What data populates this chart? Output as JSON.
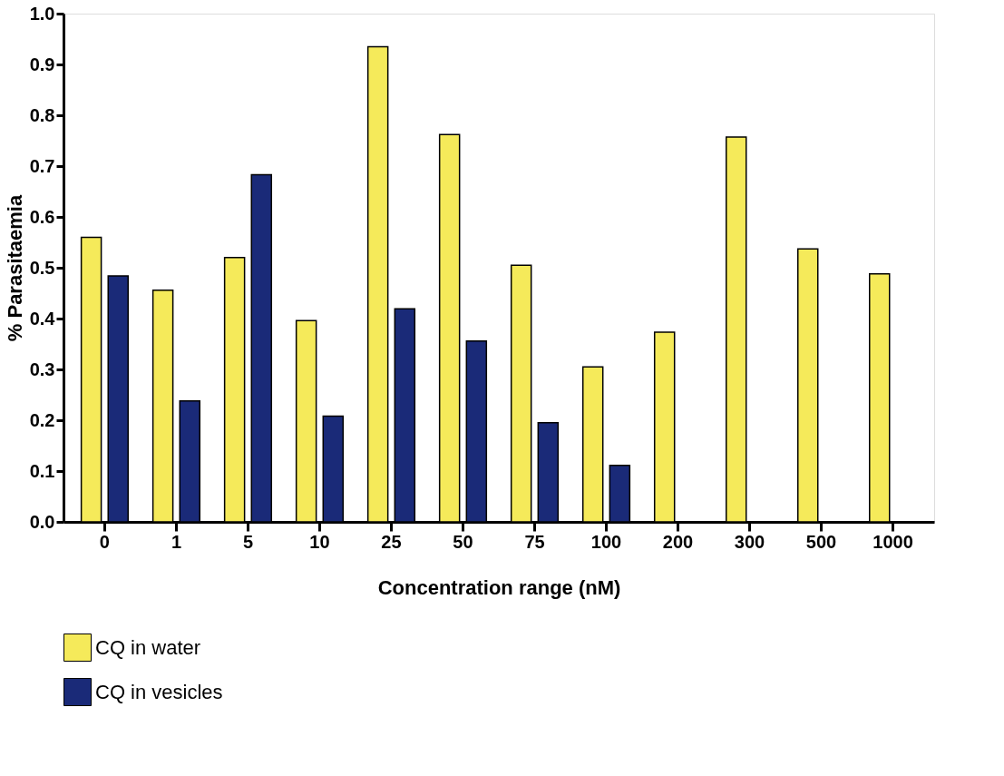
{
  "chart_data": {
    "type": "bar",
    "xlabel": "Concentration range (nM)",
    "ylabel": "% Parasitaemia",
    "categories": [
      "0",
      "1",
      "5",
      "10",
      "25",
      "50",
      "75",
      "100",
      "200",
      "300",
      "500",
      "1000"
    ],
    "series": [
      {
        "name": "CQ in water",
        "color": "#f5ea5a",
        "values": [
          0.56,
          0.456,
          0.52,
          0.396,
          0.935,
          0.762,
          0.505,
          0.305,
          0.373,
          0.757,
          0.537,
          0.488
        ]
      },
      {
        "name": "CQ in vesicles",
        "color": "#1a2a78",
        "values": [
          0.484,
          0.238,
          0.683,
          0.208,
          0.419,
          0.356,
          0.195,
          0.111,
          null,
          null,
          null,
          null
        ]
      }
    ],
    "ylim": [
      0,
      1.0
    ],
    "yticks": [
      {
        "value": 0,
        "label": "0.0"
      },
      0.1,
      0.2,
      0.3,
      0.4,
      0.5,
      0.6,
      0.7,
      0.8,
      0.9,
      {
        "value": 1.0,
        "label": "1.0"
      }
    ],
    "grid": false,
    "legend": "bottom"
  }
}
